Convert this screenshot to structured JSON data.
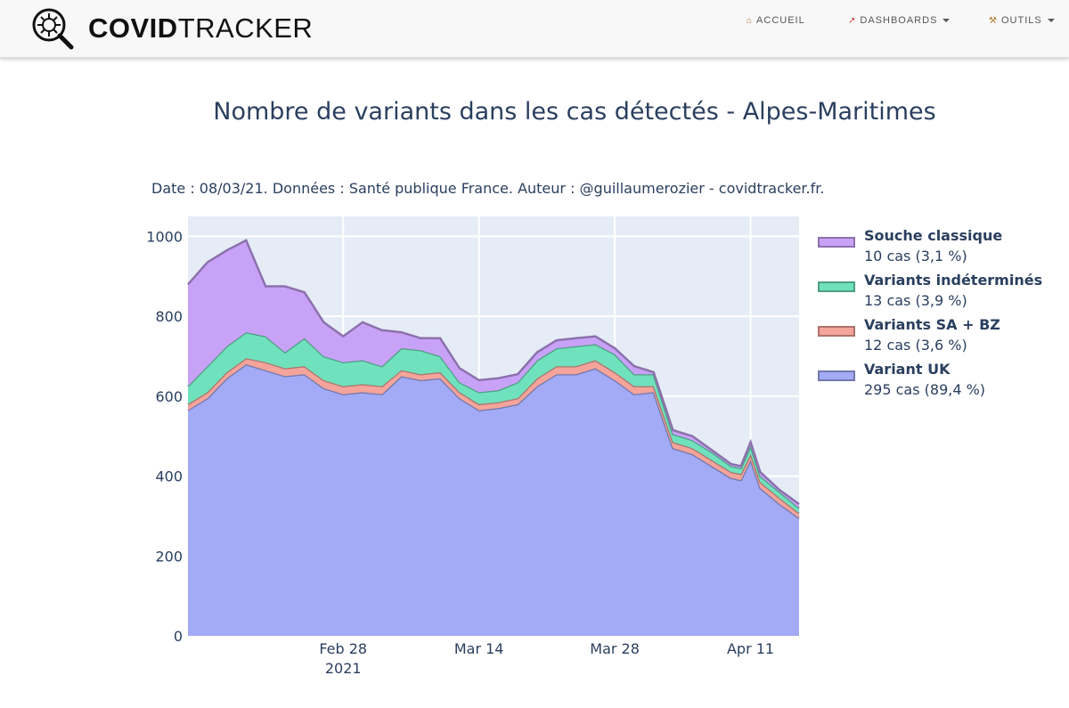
{
  "nav": {
    "brand_bold": "COVID",
    "brand_light": "TRACKER",
    "items": [
      {
        "label": "ACCUEIL",
        "icon": "home-icon",
        "dropdown": false
      },
      {
        "label": "DASHBOARDS",
        "icon": "chart-icon",
        "dropdown": true
      },
      {
        "label": "OUTILS",
        "icon": "tools-icon",
        "dropdown": true
      }
    ]
  },
  "chart_data": {
    "type": "area",
    "stacked": true,
    "title": "Nombre de variants dans les cas détectés - Alpes-Maritimes",
    "subtitle": "Date : 08/03/21. Données : Santé publique France. Auteur : @guillaumerozier - covidtracker.fr.",
    "x_start": "2021-02-12",
    "x_end": "2021-04-16",
    "x_ticks": [
      {
        "date": "2021-02-28",
        "label": "Feb 28",
        "sublabel": "2021"
      },
      {
        "date": "2021-03-14",
        "label": "Mar 14",
        "sublabel": ""
      },
      {
        "date": "2021-03-28",
        "label": "Mar 28",
        "sublabel": ""
      },
      {
        "date": "2021-04-11",
        "label": "Apr 11",
        "sublabel": ""
      }
    ],
    "ylim": [
      0,
      1050
    ],
    "y_ticks": [
      0,
      200,
      400,
      600,
      800,
      1000
    ],
    "grid": true,
    "legend_position": "right",
    "x": [
      "2021-02-12",
      "2021-02-14",
      "2021-02-16",
      "2021-02-18",
      "2021-02-20",
      "2021-02-22",
      "2021-02-24",
      "2021-02-26",
      "2021-02-28",
      "2021-03-02",
      "2021-03-04",
      "2021-03-06",
      "2021-03-08",
      "2021-03-10",
      "2021-03-12",
      "2021-03-14",
      "2021-03-16",
      "2021-03-18",
      "2021-03-20",
      "2021-03-22",
      "2021-03-24",
      "2021-03-26",
      "2021-03-28",
      "2021-03-30",
      "2021-04-01",
      "2021-04-03",
      "2021-04-05",
      "2021-04-07",
      "2021-04-09",
      "2021-04-10",
      "2021-04-11",
      "2021-04-12",
      "2021-04-14",
      "2021-04-16"
    ],
    "series": [
      {
        "name": "Variant UK",
        "legend_detail": "295 cas (89,4 %)",
        "color": "#a3aaf6",
        "values": [
          565,
          595,
          645,
          680,
          665,
          650,
          655,
          620,
          605,
          610,
          605,
          650,
          640,
          645,
          595,
          565,
          570,
          580,
          625,
          655,
          655,
          670,
          640,
          605,
          610,
          470,
          455,
          425,
          395,
          390,
          440,
          370,
          330,
          295
        ]
      },
      {
        "name": "Variants SA + BZ",
        "legend_detail": "12 cas (3,6 %)",
        "color": "#f4a49a",
        "values": [
          15,
          15,
          15,
          15,
          20,
          20,
          20,
          20,
          20,
          20,
          20,
          15,
          15,
          15,
          15,
          15,
          15,
          15,
          20,
          20,
          20,
          20,
          20,
          20,
          15,
          15,
          15,
          15,
          15,
          15,
          15,
          15,
          15,
          12
        ]
      },
      {
        "name": "Variants indéterminés",
        "legend_detail": "13 cas (3,9 %)",
        "color": "#6fe2bd",
        "values": [
          45,
          65,
          65,
          65,
          65,
          40,
          70,
          60,
          60,
          60,
          50,
          55,
          60,
          40,
          25,
          30,
          30,
          40,
          45,
          45,
          50,
          40,
          45,
          30,
          30,
          20,
          20,
          20,
          15,
          15,
          20,
          15,
          15,
          13
        ]
      },
      {
        "name": "Souche classique",
        "legend_detail": "10 cas (3,1 %)",
        "color": "#c8a2f7",
        "values": [
          255,
          260,
          240,
          230,
          125,
          165,
          115,
          85,
          65,
          95,
          90,
          40,
          30,
          45,
          35,
          30,
          30,
          20,
          20,
          20,
          20,
          20,
          15,
          20,
          5,
          10,
          10,
          5,
          5,
          5,
          10,
          10,
          5,
          10
        ]
      }
    ]
  }
}
